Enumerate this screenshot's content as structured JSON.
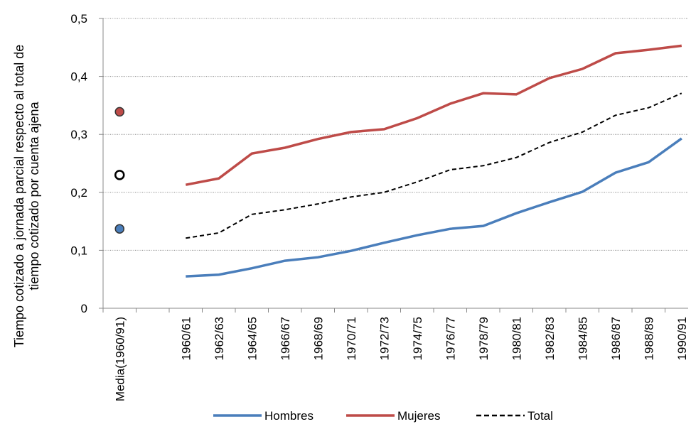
{
  "chart_data": {
    "type": "line",
    "ylabel": "Tiempo cotizado a jornada parcial respecto al total de tiempo cotizado por cuenta ajena",
    "categories": [
      "Media(1960/91)",
      null,
      "1960/61",
      "1962/63",
      "1964/65",
      "1966/67",
      "1968/69",
      "1970/71",
      "1972/73",
      "1974/75",
      "1976/77",
      "1978/79",
      "1980/81",
      "1982/83",
      "1984/85",
      "1986/87",
      "1988/89",
      "1990/91"
    ],
    "series": [
      {
        "name": "Hombres",
        "color": "#4a7ebb",
        "dash": false,
        "values": [
          0.137,
          null,
          0.055,
          0.058,
          0.069,
          0.082,
          0.088,
          0.099,
          0.113,
          0.126,
          0.137,
          0.142,
          0.164,
          0.183,
          0.201,
          0.234,
          0.252,
          0.293
        ]
      },
      {
        "name": "Mujeres",
        "color": "#be4b48",
        "dash": false,
        "values": [
          0.339,
          null,
          0.213,
          0.224,
          0.267,
          0.277,
          0.292,
          0.304,
          0.309,
          0.328,
          0.353,
          0.371,
          0.369,
          0.397,
          0.413,
          0.44,
          0.446,
          0.453
        ]
      },
      {
        "name": "Total",
        "color": "#000000",
        "dash": true,
        "values": [
          0.23,
          null,
          0.121,
          0.13,
          0.162,
          0.17,
          0.18,
          0.192,
          0.2,
          0.218,
          0.239,
          0.246,
          0.26,
          0.286,
          0.304,
          0.333,
          0.346,
          0.371
        ]
      }
    ],
    "ylim": [
      0,
      0.5
    ],
    "yticks": [
      0,
      {
        "value": 0.1,
        "label": "0,1"
      },
      {
        "value": 0.2,
        "label": "0,2"
      },
      {
        "value": 0.3,
        "label": "0,3"
      },
      {
        "value": 0.4,
        "label": "0,4"
      },
      {
        "value": 0.5,
        "label": "0,5"
      }
    ],
    "grid": true,
    "legend": "bottom"
  }
}
